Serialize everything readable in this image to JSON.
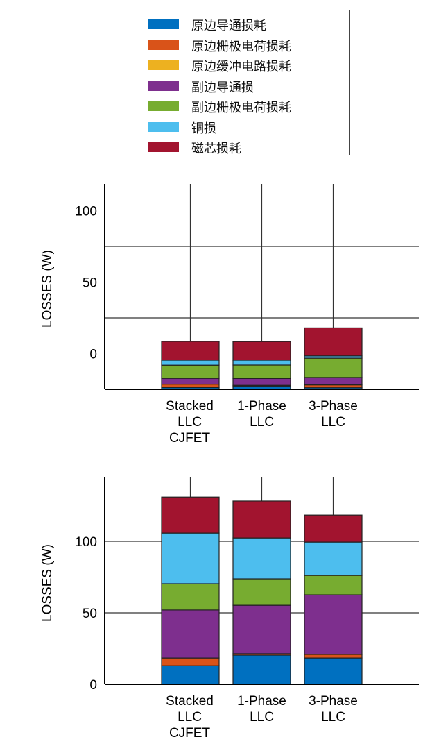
{
  "legend": [
    {
      "label": "原边导通损耗",
      "color": "#0070C0"
    },
    {
      "label": "原边栅极电荷损耗",
      "color": "#D95319"
    },
    {
      "label": "原边缓冲电路损耗",
      "color": "#EDB120"
    },
    {
      "label": "副边导通损",
      "color": "#7E2F8E"
    },
    {
      "label": "副边栅极电荷损耗",
      "color": "#77AC30"
    },
    {
      "label": "铜损",
      "color": "#4DBEEE"
    },
    {
      "label": "磁芯损耗",
      "color": "#A2142F"
    }
  ],
  "chart_data": [
    {
      "type": "bar",
      "stacked": true,
      "ylabel": "LOSSES (W)",
      "ylim": [
        -25,
        118.7
      ],
      "bar_base": -25,
      "yticks": [
        0,
        50,
        100
      ],
      "ytick_labels": [
        "0",
        "50",
        "100"
      ],
      "gridlines": [
        25,
        75
      ],
      "categories": [
        [
          "Stacked",
          "LLC",
          "CJFET"
        ],
        [
          "1-Phase",
          "LLC"
        ],
        [
          "3-Phase",
          "LLC"
        ]
      ],
      "series_values": [
        [
          1.2,
          2.4,
          0,
          4.1,
          9.2,
          3.5,
          13.1
        ],
        [
          2.3,
          0.5,
          0,
          4.8,
          9.4,
          3.4,
          13.0
        ],
        [
          1.1,
          2.0,
          0,
          5.2,
          13.5,
          1.6,
          19.6
        ]
      ]
    },
    {
      "type": "bar",
      "stacked": true,
      "ylabel": "LOSSES (W)",
      "ylim": [
        0,
        144.7
      ],
      "bar_base": 0,
      "yticks": [
        0,
        50,
        100
      ],
      "ytick_labels": [
        "0",
        "50",
        "100"
      ],
      "gridlines": [
        50,
        100
      ],
      "categories": [
        [
          "Stacked",
          "LLC",
          "CJFET"
        ],
        [
          "1-Phase",
          "LLC"
        ],
        [
          "3-Phase",
          "LLC"
        ]
      ],
      "series_values": [
        [
          13.0,
          5.4,
          0,
          33.6,
          18.4,
          35.4,
          25.2
        ],
        [
          20.4,
          1.0,
          0,
          33.9,
          18.5,
          28.6,
          25.8
        ],
        [
          18.4,
          2.5,
          0,
          41.7,
          13.6,
          23.3,
          18.9
        ]
      ]
    }
  ]
}
